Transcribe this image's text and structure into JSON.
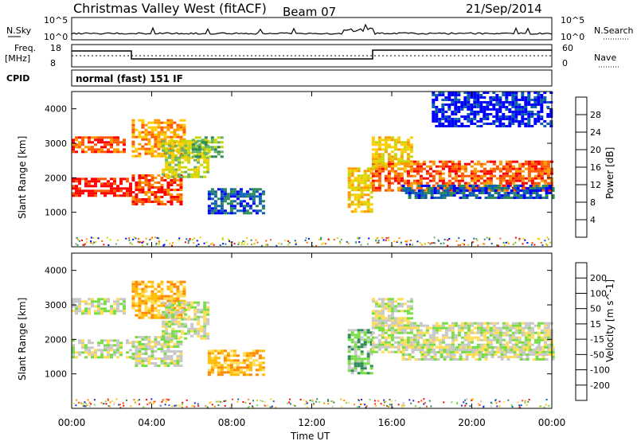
{
  "header": {
    "station": "Christmas Valley West (fitACF)",
    "beam": "Beam 07",
    "date": "21/Sep/2014"
  },
  "top_panels": {
    "nsky_label": "N.Sky",
    "nsky_ticks": [
      "10^5",
      "10^0"
    ],
    "nsearch_label": "N.Search",
    "nsearch_ticks": [
      "10^5",
      "10^0"
    ],
    "freq_label_line1": "Freq.",
    "freq_label_line2": "[MHz]",
    "freq_ticks": [
      "18",
      "8"
    ],
    "nave_label": "Nave",
    "nave_ticks": [
      "60",
      "0"
    ],
    "cpid_label": "CPID",
    "cpid_value": "normal (fast) 151 IF"
  },
  "colors": {
    "power": [
      "#0000ff",
      "#1060b0",
      "#2e8b57",
      "#66b266",
      "#c8d800",
      "#ffcc00",
      "#ff9900",
      "#ff5a00",
      "#ff0000"
    ],
    "velocity": [
      "#ff0000",
      "#ff4400",
      "#ff8800",
      "#ffbb00",
      "#ffdd55",
      "#c8c8c8",
      "#77dd44",
      "#2e8b57",
      "#1060b0",
      "#2222cc"
    ]
  },
  "chart_data": [
    {
      "type": "heatmap",
      "name": "power",
      "ylabel": "Slant Range [km]",
      "yticks": [
        1000,
        2000,
        3000,
        4000
      ],
      "ylim": [
        0,
        4500
      ],
      "colorbar_label": "Power [dB]",
      "colorbar_ticks": [
        4,
        8,
        12,
        16,
        20,
        24,
        28
      ],
      "regions": [
        {
          "t": [
            0.0,
            3.0
          ],
          "r": [
            1500,
            2000
          ],
          "level": 8
        },
        {
          "t": [
            0.0,
            2.7
          ],
          "r": [
            2750,
            3200
          ],
          "level": 7
        },
        {
          "t": [
            3.0,
            5.4
          ],
          "r": [
            1200,
            2100
          ],
          "level": 7
        },
        {
          "t": [
            3.0,
            5.6
          ],
          "r": [
            2600,
            3700
          ],
          "level": 6
        },
        {
          "t": [
            4.5,
            6.8
          ],
          "r": [
            2000,
            3100
          ],
          "level": 4
        },
        {
          "t": [
            6.0,
            7.5
          ],
          "r": [
            2600,
            3200
          ],
          "level": 3
        },
        {
          "t": [
            6.8,
            9.6
          ],
          "r": [
            1000,
            1700
          ],
          "level": 1
        },
        {
          "t": [
            13.8,
            15.0
          ],
          "r": [
            1000,
            2300
          ],
          "level": 5
        },
        {
          "t": [
            15.0,
            24.0
          ],
          "r": [
            1600,
            2500
          ],
          "level": 7
        },
        {
          "t": [
            15.0,
            17.0
          ],
          "r": [
            2300,
            3200
          ],
          "level": 5
        },
        {
          "t": [
            16.5,
            24.0
          ],
          "r": [
            1400,
            1800
          ],
          "level": 1
        },
        {
          "t": [
            18.0,
            24.0
          ],
          "r": [
            3500,
            4500
          ],
          "level": 0
        }
      ]
    },
    {
      "type": "heatmap",
      "name": "velocity",
      "xlabel": "Time UT",
      "xticks": [
        "00:00",
        "04:00",
        "08:00",
        "12:00",
        "16:00",
        "20:00",
        "00:00"
      ],
      "xlim": [
        0,
        24
      ],
      "ylabel": "Slant Range [km]",
      "yticks": [
        1000,
        2000,
        3000,
        4000
      ],
      "ylim": [
        0,
        4500
      ],
      "colorbar_label": "Velocity [m s^-1]",
      "colorbar_ticks": [
        -200,
        -100,
        -50,
        -15,
        15,
        50,
        100,
        200
      ],
      "regions": [
        {
          "t": [
            0.0,
            3.0
          ],
          "r": [
            1500,
            2000
          ],
          "level": 5
        },
        {
          "t": [
            0.0,
            2.7
          ],
          "r": [
            2750,
            3200
          ],
          "level": 5
        },
        {
          "t": [
            3.0,
            5.4
          ],
          "r": [
            1200,
            2100
          ],
          "level": 5
        },
        {
          "t": [
            3.0,
            5.6
          ],
          "r": [
            2600,
            3700
          ],
          "level": 3
        },
        {
          "t": [
            4.5,
            6.8
          ],
          "r": [
            2000,
            3100
          ],
          "level": 5
        },
        {
          "t": [
            6.8,
            9.6
          ],
          "r": [
            1000,
            1700
          ],
          "level": 3
        },
        {
          "t": [
            13.8,
            15.0
          ],
          "r": [
            1000,
            2300
          ],
          "level": 6
        },
        {
          "t": [
            15.0,
            24.0
          ],
          "r": [
            1600,
            2500
          ],
          "level": 5
        },
        {
          "t": [
            15.0,
            17.0
          ],
          "r": [
            2300,
            3200
          ],
          "level": 5
        },
        {
          "t": [
            16.5,
            24.0
          ],
          "r": [
            1400,
            1800
          ],
          "level": 5
        }
      ]
    }
  ]
}
